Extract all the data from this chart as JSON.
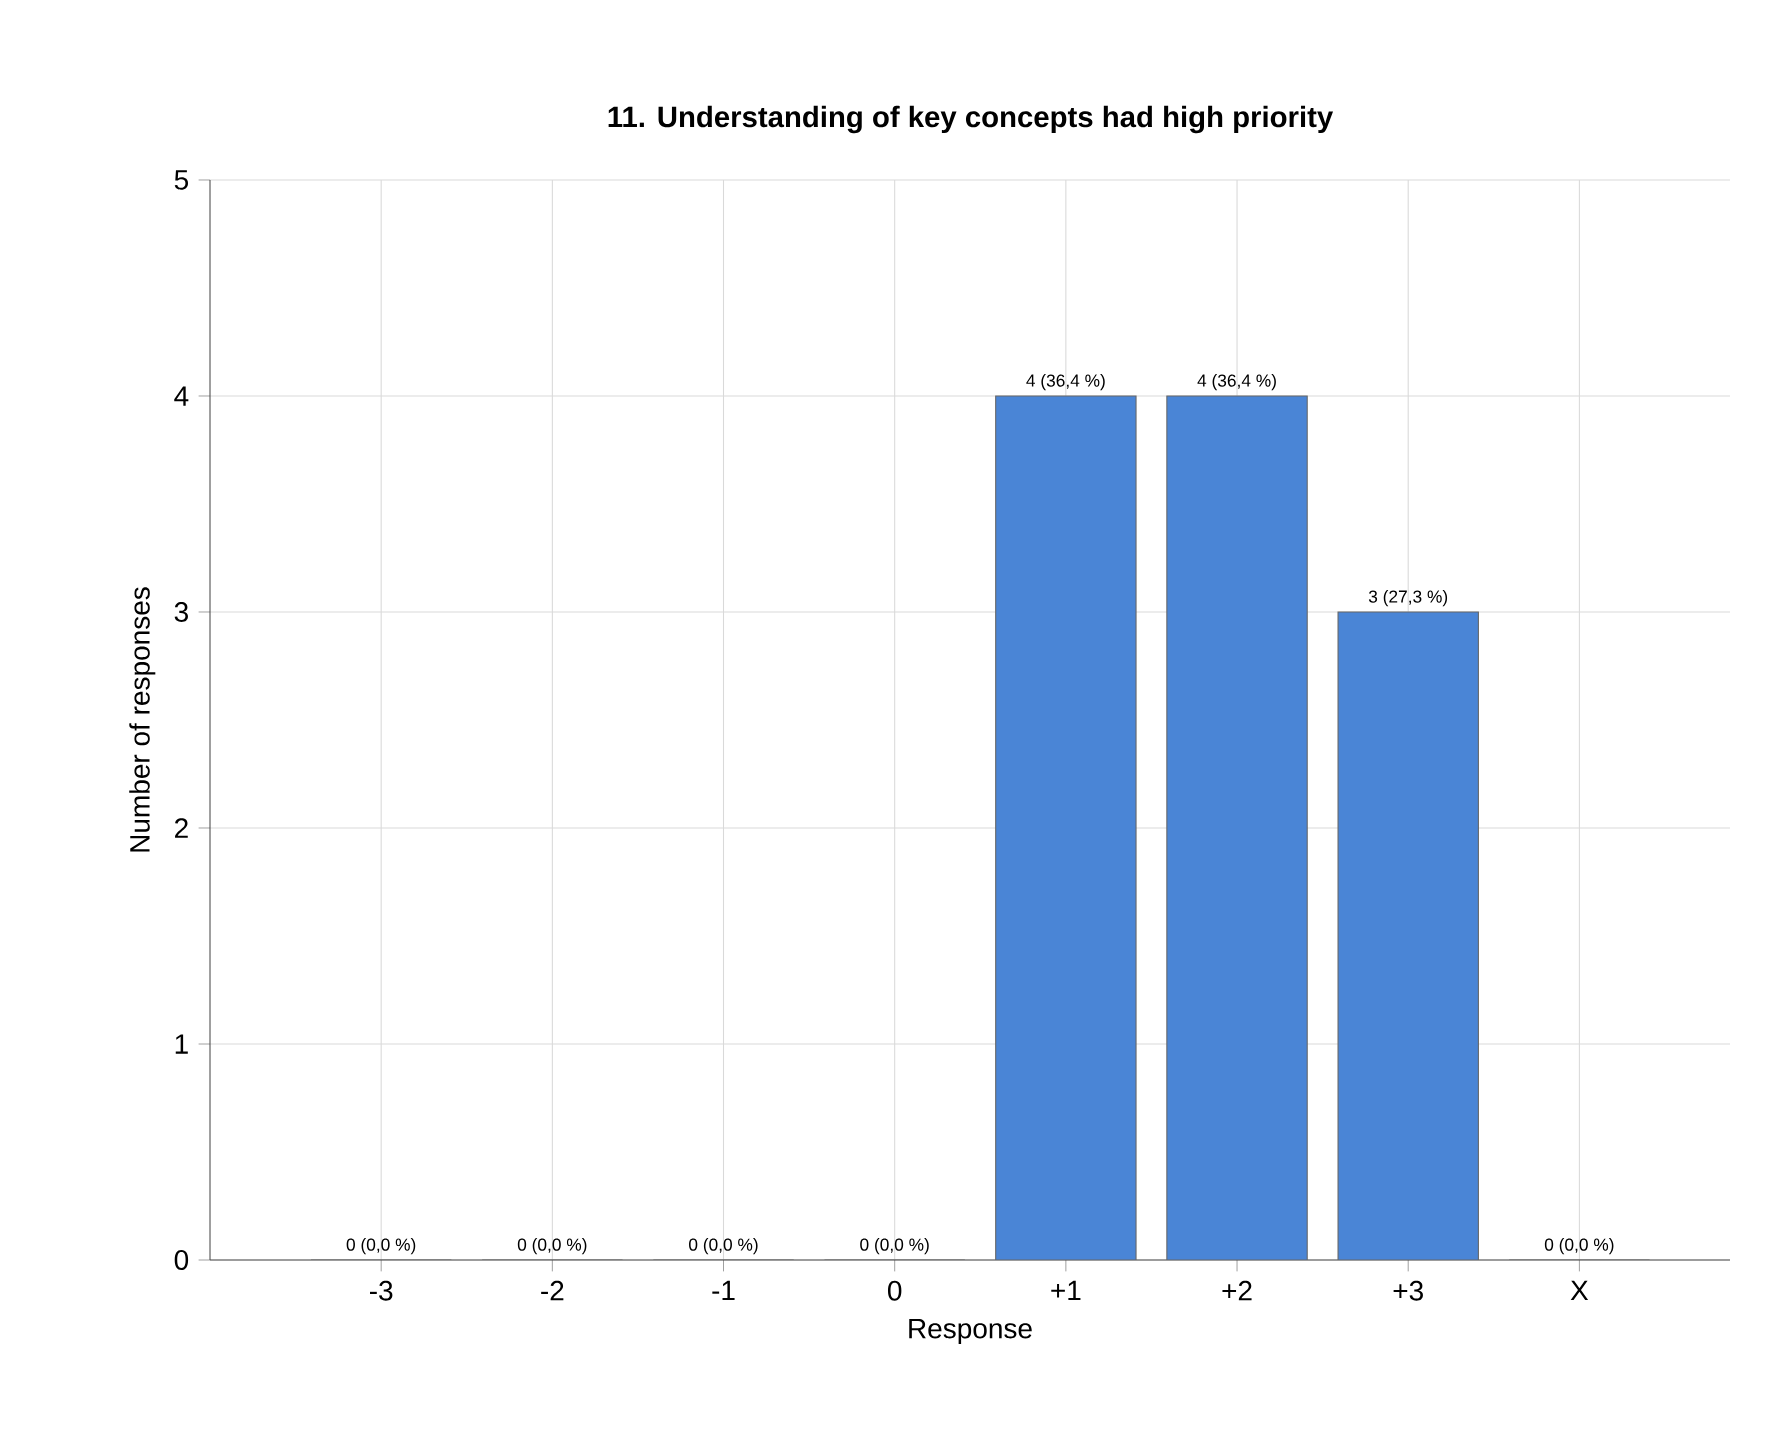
{
  "chart_data": {
    "type": "bar",
    "title": "11. Understanding of key concepts had high priority",
    "xlabel": "Response",
    "ylabel": "Number of responses",
    "categories": [
      "-3",
      "-2",
      "-1",
      "0",
      "+1",
      "+2",
      "+3",
      "X"
    ],
    "values": [
      0,
      0,
      0,
      0,
      4,
      4,
      3,
      0
    ],
    "value_labels": [
      "0 (0,0 %)",
      "0 (0,0 %)",
      "0 (0,0 %)",
      "0 (0,0 %)",
      "4 (36,4 %)",
      "4 (36,4 %)",
      "3 (27,3 %)",
      "0 (0,0 %)"
    ],
    "color": "#4a85d6",
    "ylim": [
      0,
      5
    ],
    "yticks": [
      0,
      1,
      2,
      3,
      4,
      5
    ],
    "grid": true
  }
}
